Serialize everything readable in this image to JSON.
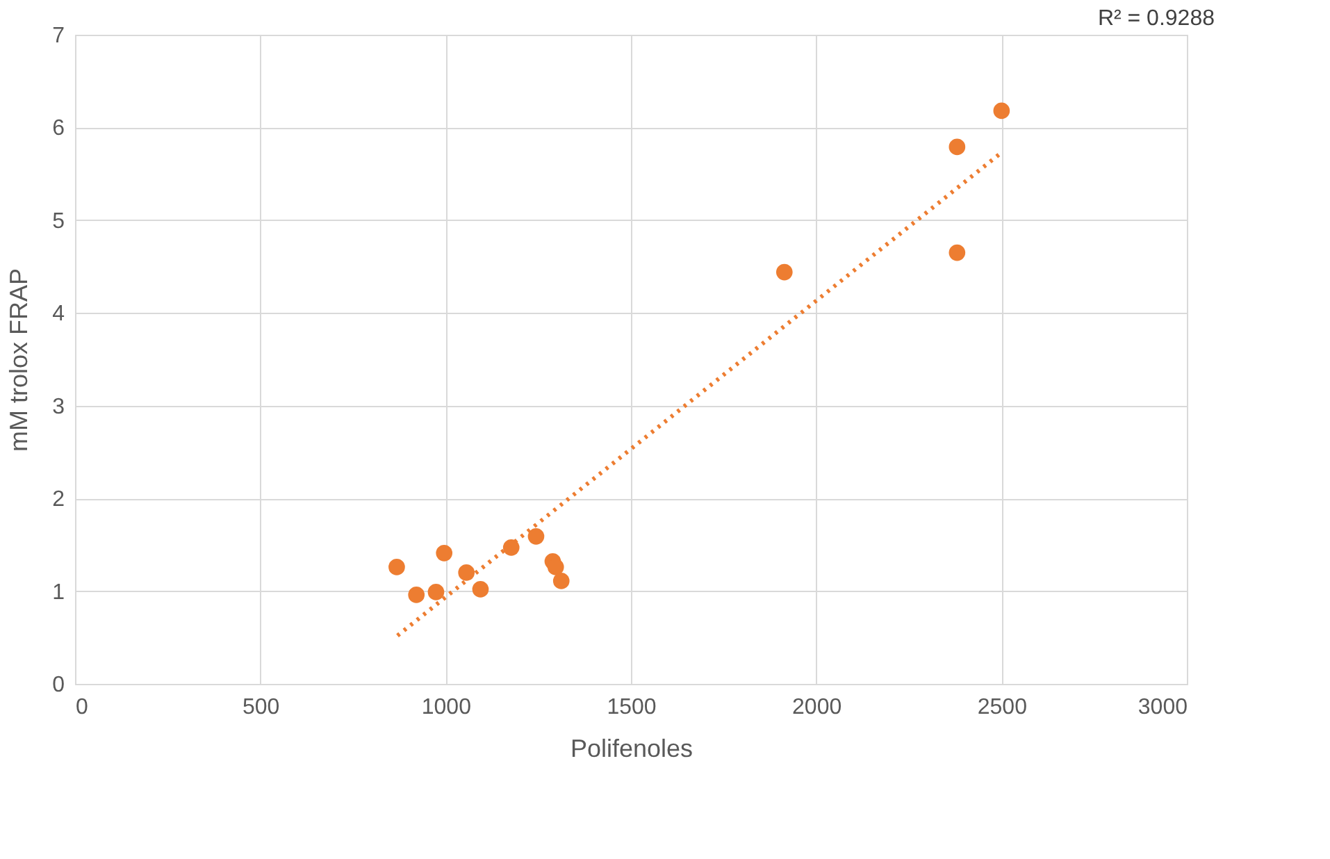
{
  "chart_data": {
    "type": "scatter",
    "xlabel": "Polifenoles",
    "ylabel": "mM trolox FRAP",
    "xlim": [
      0,
      3000
    ],
    "xticks": [
      0,
      500,
      1000,
      1500,
      2000,
      2500,
      3000
    ],
    "ylim": [
      0,
      7
    ],
    "yticks": [
      0,
      1,
      2,
      3,
      4,
      5,
      6,
      7
    ],
    "grid": true,
    "annotations": [
      "R² = 0.9288"
    ],
    "series": [
      {
        "color": "#ed7d31",
        "marker": "circle",
        "x": [
          868,
          921,
          974,
          996,
          1056,
          1094,
          1177,
          1244,
          1289,
          1297,
          1312,
          1914,
          2380,
          2380,
          2500
        ],
        "values": [
          1.26,
          0.96,
          0.99,
          1.41,
          1.2,
          1.02,
          1.47,
          1.59,
          1.32,
          1.26,
          1.11,
          4.44,
          5.79,
          4.65,
          6.18
        ]
      },
      {
        "type": "line",
        "color": "#ed7d31",
        "line_style": "dotted",
        "marker": "none",
        "x": [
          870,
          2500
        ],
        "values": [
          0.52,
          5.73
        ]
      }
    ]
  }
}
